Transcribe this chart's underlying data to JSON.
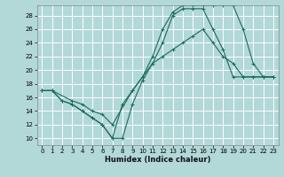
{
  "background_color": "#b2d8d8",
  "grid_color": "#d0e8e8",
  "line_color": "#1a6b5a",
  "xlabel": "Humidex (Indice chaleur)",
  "xlim": [
    -0.5,
    23.5
  ],
  "ylim": [
    9,
    29.5
  ],
  "yticks": [
    10,
    12,
    14,
    16,
    18,
    20,
    22,
    24,
    26,
    28
  ],
  "xticks": [
    0,
    1,
    2,
    3,
    4,
    5,
    6,
    7,
    8,
    9,
    10,
    11,
    12,
    13,
    14,
    15,
    16,
    17,
    18,
    19,
    20,
    21,
    22,
    23
  ],
  "curve1_x": [
    0,
    1,
    2,
    3,
    4,
    5,
    6,
    7,
    8,
    9,
    10,
    11,
    12,
    13,
    14,
    15,
    16,
    17,
    18,
    19,
    20,
    21,
    22,
    23
  ],
  "curve1_y": [
    17,
    17,
    15.5,
    15,
    14,
    13,
    12,
    10,
    10,
    15,
    18.5,
    21,
    24,
    28,
    29,
    29,
    29,
    26,
    23,
    19,
    19,
    19,
    19,
    19
  ],
  "curve2_x": [
    0,
    1,
    2,
    3,
    4,
    5,
    6,
    7,
    8,
    9,
    10,
    11,
    12,
    13,
    14,
    15,
    16,
    17,
    18,
    19,
    20,
    21,
    22,
    23
  ],
  "curve2_y": [
    17,
    17,
    15.5,
    15,
    14,
    13,
    12,
    10,
    15,
    17,
    19,
    21,
    22,
    23,
    24,
    25,
    26,
    24,
    22,
    21,
    19,
    19,
    19,
    19
  ],
  "curve3_x": [
    0,
    1,
    3,
    4,
    5,
    6,
    7,
    9,
    10,
    11,
    12,
    13,
    14,
    15,
    16,
    17,
    18,
    19,
    20,
    21,
    22,
    23
  ],
  "curve3_y": [
    17,
    17,
    15.5,
    15,
    14,
    13.5,
    12,
    17,
    19,
    22,
    26,
    28.5,
    29.5,
    29.5,
    29.5,
    29.5,
    29.5,
    29.5,
    26,
    21,
    19,
    19
  ]
}
